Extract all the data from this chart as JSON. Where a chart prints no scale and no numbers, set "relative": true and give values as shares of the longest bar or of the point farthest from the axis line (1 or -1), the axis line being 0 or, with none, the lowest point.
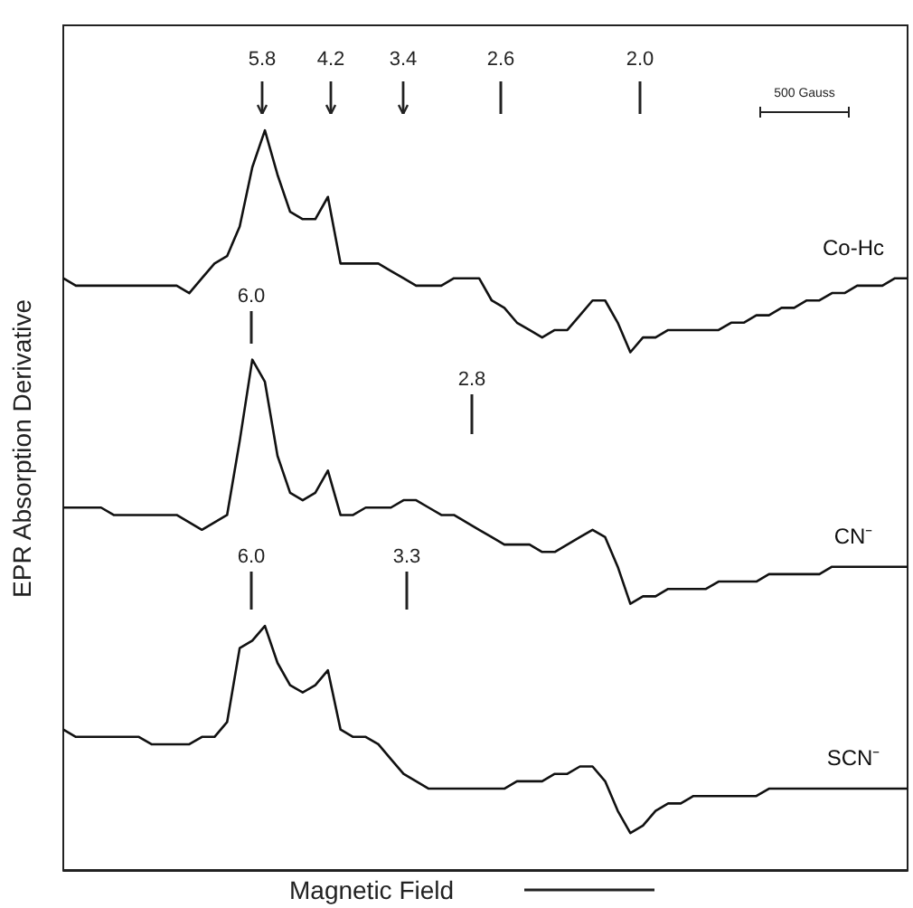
{
  "chart_data": {
    "type": "line",
    "relative": true,
    "ylabel": "EPR Absorption Derivative",
    "xlabel": "Magnetic Field",
    "legend": false,
    "grid": false,
    "categories": [
      null,
      null,
      null,
      null,
      null,
      null,
      null,
      null,
      null,
      null,
      null,
      null,
      null,
      null,
      null,
      null,
      null,
      null,
      null,
      null,
      null,
      null,
      null,
      null,
      null,
      null,
      null,
      null,
      null,
      null,
      null,
      null,
      null,
      null,
      null,
      null,
      null,
      null,
      null,
      null,
      null,
      null,
      null,
      null,
      null,
      null,
      null,
      null,
      null,
      null,
      null,
      null,
      null,
      null,
      null,
      null,
      null,
      null,
      null,
      null,
      null,
      null,
      null,
      null,
      null,
      null,
      null,
      null
    ],
    "series": [
      {
        "name": "Co-Hc",
        "color": "#111111",
        "values": [
          0.8,
          0.79,
          0.79,
          0.79,
          0.79,
          0.79,
          0.79,
          0.79,
          0.79,
          0.79,
          0.78,
          0.8,
          0.82,
          0.83,
          0.87,
          0.95,
          1,
          0.94,
          0.89,
          0.88,
          0.88,
          0.91,
          0.82,
          0.82,
          0.82,
          0.82,
          0.81,
          0.8,
          0.79,
          0.79,
          0.79,
          0.8,
          0.8,
          0.8,
          0.77,
          0.76,
          0.74,
          0.73,
          0.72,
          0.73,
          0.73,
          0.75,
          0.77,
          0.77,
          0.74,
          0.7,
          0.72,
          0.72,
          0.73,
          0.73,
          0.73,
          0.73,
          0.73,
          0.74,
          0.74,
          0.75,
          0.75,
          0.76,
          0.76,
          0.77,
          0.77,
          0.78,
          0.78,
          0.79,
          0.79,
          0.79,
          0.8,
          0.8
        ]
      },
      {
        "name": "CN⁻",
        "color": "#111111",
        "values": [
          0.49,
          0.49,
          0.49,
          0.49,
          0.48,
          0.48,
          0.48,
          0.48,
          0.48,
          0.48,
          0.47,
          0.46,
          0.47,
          0.48,
          0.58,
          0.69,
          0.66,
          0.56,
          0.51,
          0.5,
          0.51,
          0.54,
          0.48,
          0.48,
          0.49,
          0.49,
          0.49,
          0.5,
          0.5,
          0.49,
          0.48,
          0.48,
          0.47,
          0.46,
          0.45,
          0.44,
          0.44,
          0.44,
          0.43,
          0.43,
          0.44,
          0.45,
          0.46,
          0.45,
          0.41,
          0.36,
          0.37,
          0.37,
          0.38,
          0.38,
          0.38,
          0.38,
          0.39,
          0.39,
          0.39,
          0.39,
          0.4,
          0.4,
          0.4,
          0.4,
          0.4,
          0.41,
          0.41,
          0.41,
          0.41,
          0.41,
          0.41,
          0.41
        ]
      },
      {
        "name": "SCN⁻",
        "color": "#111111",
        "values": [
          0.19,
          0.18,
          0.18,
          0.18,
          0.18,
          0.18,
          0.18,
          0.17,
          0.17,
          0.17,
          0.17,
          0.18,
          0.18,
          0.2,
          0.3,
          0.31,
          0.33,
          0.28,
          0.25,
          0.24,
          0.25,
          0.27,
          0.19,
          0.18,
          0.18,
          0.17,
          0.15,
          0.13,
          0.12,
          0.11,
          0.11,
          0.11,
          0.11,
          0.11,
          0.11,
          0.11,
          0.12,
          0.12,
          0.12,
          0.13,
          0.13,
          0.14,
          0.14,
          0.12,
          0.08,
          0.05,
          0.06,
          0.08,
          0.09,
          0.09,
          0.1,
          0.1,
          0.1,
          0.1,
          0.1,
          0.1,
          0.11,
          0.11,
          0.11,
          0.11,
          0.11,
          0.11,
          0.11,
          0.11,
          0.11,
          0.11,
          0.11,
          0.11
        ]
      }
    ],
    "annotations": [
      "5.8",
      "4.2",
      "3.4",
      "2.6",
      "2.0",
      "500 Gauss",
      "6.0",
      "2.8",
      "6.0",
      "3.3"
    ]
  }
}
